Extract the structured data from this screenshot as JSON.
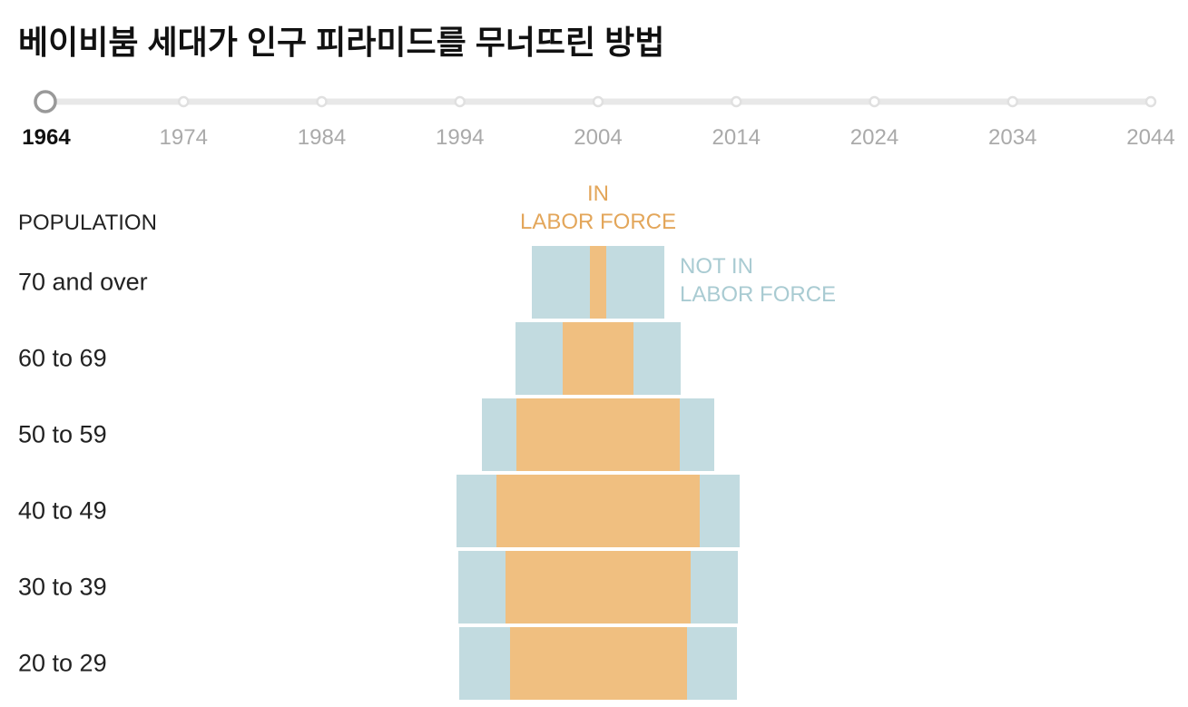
{
  "chart_data": {
    "type": "pyramid",
    "title": "베이비붐 세대가 인구 피라미드를 무너뜨린 방법",
    "timeline": {
      "years": [
        1964,
        1974,
        1984,
        1994,
        2004,
        2014,
        2024,
        2034,
        2044
      ],
      "selected": 0
    },
    "axis_label": "POPULATION",
    "categories": [
      "70 and over",
      "60 to 69",
      "50 to 59",
      "40 to 49",
      "30 to 39",
      "20 to 29"
    ],
    "series": [
      {
        "name": "IN\nLABOR FORCE",
        "color": "#f0bf80",
        "label_color": "#e3a65a",
        "values": [
          1.4,
          6.0,
          13.9,
          17.2,
          15.7,
          15.0
        ]
      },
      {
        "name": "NOT IN\nLABOR FORCE",
        "color": "#c2dbe0",
        "label_color": "#a9cbd2",
        "values": [
          9.8,
          8.0,
          5.8,
          6.8,
          8.0,
          8.5
        ]
      }
    ]
  }
}
